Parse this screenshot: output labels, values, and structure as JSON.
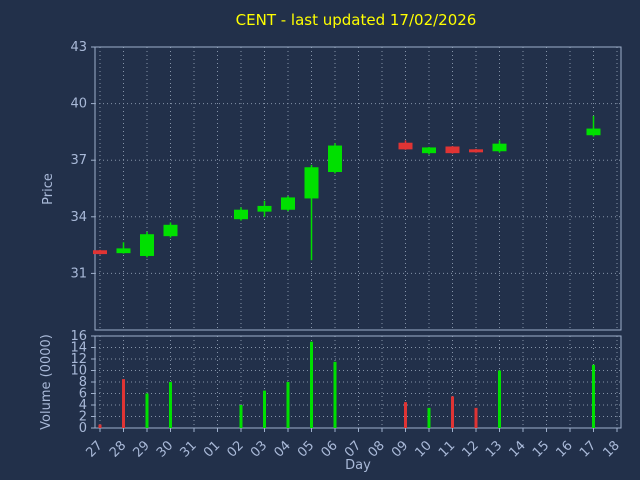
{
  "title": "CENT - last updated 17/02/2026",
  "colors": {
    "background": "#22304a",
    "title": "#ffff00",
    "axis_text": "#a9b9d8",
    "spine": "#9fb0cc",
    "grid": "#8593a8",
    "up": "#00e000",
    "down": "#e03434"
  },
  "chart_data": {
    "type": "candlestick+volume-bar",
    "title": "CENT - last updated 17/02/2026",
    "xlabel": "Day",
    "ylabel_price": "Price",
    "ylabel_volume": "Volume (0000)",
    "grid": true,
    "x_categories": [
      "27",
      "28",
      "29",
      "30",
      "31",
      "01",
      "02",
      "03",
      "04",
      "05",
      "06",
      "07",
      "08",
      "09",
      "10",
      "11",
      "12",
      "13",
      "14",
      "15",
      "16",
      "17",
      "18"
    ],
    "price_ylim": [
      28,
      43
    ],
    "price_yticks": [
      31,
      34,
      37,
      40,
      43
    ],
    "volume_ylim": [
      0,
      16
    ],
    "volume_yticks": [
      0,
      2,
      4,
      6,
      8,
      10,
      12,
      14,
      16
    ],
    "candles": [
      {
        "day": "27",
        "open": 32.2,
        "high": 32.25,
        "low": 32.0,
        "close": 32.05,
        "volume": 0.6,
        "dir": "down",
        "vol_dir": "down"
      },
      {
        "day": "28",
        "open": 32.1,
        "high": 32.65,
        "low": 32.05,
        "close": 32.3,
        "volume": 8.5,
        "dir": "up",
        "vol_dir": "down"
      },
      {
        "day": "29",
        "open": 31.95,
        "high": 33.2,
        "low": 31.85,
        "close": 33.05,
        "volume": 6.0,
        "dir": "up",
        "vol_dir": "up"
      },
      {
        "day": "30",
        "open": 33.0,
        "high": 33.7,
        "low": 32.9,
        "close": 33.55,
        "volume": 8.0,
        "dir": "up",
        "vol_dir": "up"
      },
      {
        "day": "02",
        "open": 33.9,
        "high": 34.5,
        "low": 33.8,
        "close": 34.35,
        "volume": 4.0,
        "dir": "up",
        "vol_dir": "up"
      },
      {
        "day": "03",
        "open": 34.3,
        "high": 34.85,
        "low": 34.0,
        "close": 34.55,
        "volume": 6.5,
        "dir": "up",
        "vol_dir": "up"
      },
      {
        "day": "04",
        "open": 34.4,
        "high": 35.1,
        "low": 34.3,
        "close": 35.0,
        "volume": 8.0,
        "dir": "up",
        "vol_dir": "up"
      },
      {
        "day": "05",
        "open": 35.0,
        "high": 36.75,
        "low": 31.7,
        "close": 36.6,
        "volume": 15.0,
        "dir": "up",
        "vol_dir": "up"
      },
      {
        "day": "06",
        "open": 36.4,
        "high": 37.9,
        "low": 36.3,
        "close": 37.75,
        "volume": 11.5,
        "dir": "up",
        "vol_dir": "up"
      },
      {
        "day": "09",
        "open": 37.9,
        "high": 38.05,
        "low": 37.55,
        "close": 37.6,
        "volume": 4.5,
        "dir": "down",
        "vol_dir": "down"
      },
      {
        "day": "10",
        "open": 37.4,
        "high": 37.7,
        "low": 37.3,
        "close": 37.65,
        "volume": 3.5,
        "dir": "up",
        "vol_dir": "up"
      },
      {
        "day": "11",
        "open": 37.7,
        "high": 37.75,
        "low": 37.35,
        "close": 37.4,
        "volume": 5.5,
        "dir": "down",
        "vol_dir": "down"
      },
      {
        "day": "12",
        "open": 37.55,
        "high": 37.6,
        "low": 37.4,
        "close": 37.45,
        "volume": 3.5,
        "dir": "down",
        "vol_dir": "down"
      },
      {
        "day": "13",
        "open": 37.5,
        "high": 38.05,
        "low": 37.4,
        "close": 37.85,
        "volume": 10.0,
        "dir": "up",
        "vol_dir": "up"
      },
      {
        "day": "17",
        "open": 38.35,
        "high": 39.35,
        "low": 38.25,
        "close": 38.65,
        "volume": 11.0,
        "dir": "up",
        "vol_dir": "up"
      }
    ]
  }
}
